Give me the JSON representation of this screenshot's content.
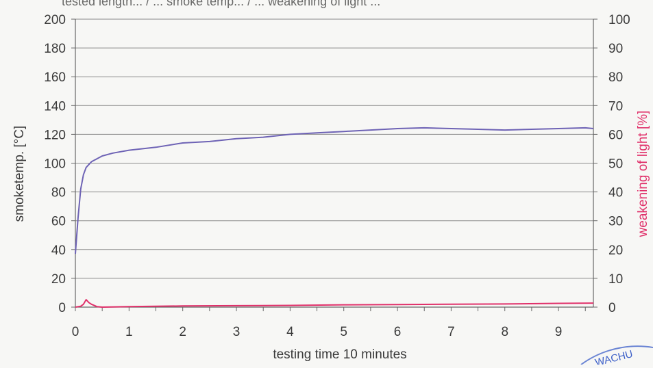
{
  "header_fragment": "tested length... / ... smoke temp... / ... weakening of light ...",
  "chart_data": {
    "type": "line",
    "title": "",
    "xlabel": "testing time 10 minutes",
    "ylabel_left": "smoketemp. [°C]",
    "ylabel_right": "weakening of light [%]",
    "x_ticks": [
      0,
      1,
      2,
      3,
      4,
      5,
      6,
      7,
      8,
      9
    ],
    "xlim": [
      0,
      9.65
    ],
    "ylim_left": [
      0,
      200
    ],
    "ylim_right": [
      0,
      100
    ],
    "y_ticks_left": [
      0,
      20,
      40,
      60,
      80,
      100,
      120,
      140,
      160,
      180,
      200
    ],
    "y_ticks_right": [
      0,
      10,
      20,
      30,
      40,
      50,
      60,
      70,
      80,
      90,
      100
    ],
    "grid": true,
    "series": [
      {
        "axis": "left",
        "color": "#6e63b5",
        "x": [
          0,
          0.05,
          0.1,
          0.15,
          0.2,
          0.3,
          0.4,
          0.5,
          0.7,
          1,
          1.5,
          2,
          2.5,
          3,
          3.5,
          4,
          4.5,
          5,
          5.5,
          6,
          6.5,
          7,
          7.5,
          8,
          8.5,
          9,
          9.5,
          9.65
        ],
        "values": [
          37,
          62,
          82,
          92,
          97,
          101,
          103,
          105,
          107,
          109,
          111,
          114,
          115,
          117,
          118,
          120,
          121,
          122,
          123,
          124,
          124.5,
          124,
          123.5,
          123,
          123.5,
          124,
          124.5,
          124
        ]
      },
      {
        "axis": "right",
        "color": "#e0306a",
        "x": [
          0,
          0.1,
          0.15,
          0.2,
          0.25,
          0.3,
          0.4,
          0.5,
          1,
          2,
          3,
          4,
          5,
          6,
          7,
          8,
          9,
          9.65
        ],
        "values": [
          0,
          0.3,
          1,
          2.6,
          1.6,
          1,
          0.2,
          0,
          0.2,
          0.4,
          0.5,
          0.6,
          0.8,
          0.9,
          1,
          1.1,
          1.3,
          1.4
        ]
      }
    ]
  },
  "stamp": {
    "text": "WACHU",
    "color": "#3c5fc8"
  }
}
